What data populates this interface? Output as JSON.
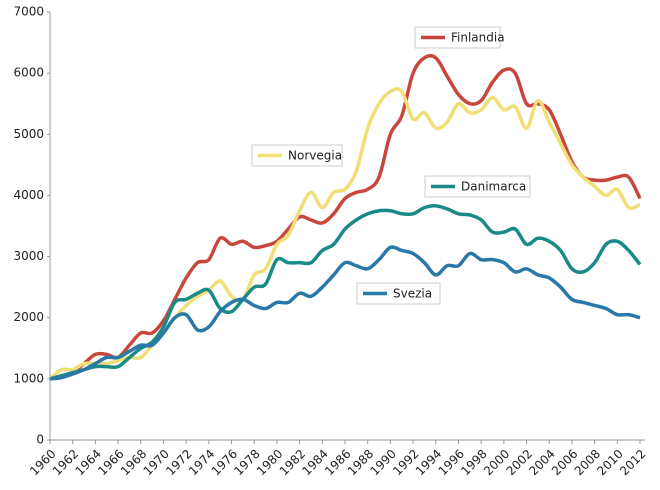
{
  "chart_data": {
    "type": "line",
    "x": [
      1960,
      1961,
      1962,
      1963,
      1964,
      1965,
      1966,
      1967,
      1968,
      1969,
      1970,
      1971,
      1972,
      1973,
      1974,
      1975,
      1976,
      1977,
      1978,
      1979,
      1980,
      1981,
      1982,
      1983,
      1984,
      1985,
      1986,
      1987,
      1988,
      1989,
      1990,
      1991,
      1992,
      1993,
      1994,
      1995,
      1996,
      1997,
      1998,
      1999,
      2000,
      2001,
      2002,
      2003,
      2004,
      2005,
      2006,
      2007,
      2008,
      2009,
      2010,
      2011,
      2012
    ],
    "series": [
      {
        "name": "Finlandia",
        "color": "#c8463c",
        "values": [
          1000,
          1050,
          1100,
          1250,
          1400,
          1400,
          1350,
          1550,
          1750,
          1750,
          1950,
          2300,
          2650,
          2900,
          2950,
          3300,
          3200,
          3250,
          3150,
          3180,
          3250,
          3450,
          3650,
          3600,
          3550,
          3700,
          3950,
          4050,
          4100,
          4300,
          5000,
          5300,
          6000,
          6250,
          6250,
          5950,
          5650,
          5500,
          5550,
          5850,
          6050,
          6000,
          5500,
          5500,
          5400,
          5000,
          4550,
          4300,
          4250,
          4250,
          4300,
          4300,
          3950
        ]
      },
      {
        "name": "Norvegia",
        "color": "#f0de76",
        "values": [
          1000,
          1150,
          1150,
          1250,
          1250,
          1250,
          1300,
          1350,
          1350,
          1550,
          1750,
          2000,
          2200,
          2350,
          2450,
          2600,
          2350,
          2300,
          2700,
          2800,
          3200,
          3350,
          3750,
          4050,
          3800,
          4050,
          4100,
          4400,
          5100,
          5500,
          5700,
          5700,
          5250,
          5350,
          5100,
          5200,
          5500,
          5350,
          5400,
          5600,
          5400,
          5450,
          5100,
          5550,
          5200,
          4850,
          4500,
          4300,
          4150,
          4000,
          4100,
          3800,
          3850
        ]
      },
      {
        "name": "Danimarca",
        "color": "#1a8a86",
        "values": [
          1000,
          1050,
          1100,
          1150,
          1200,
          1200,
          1200,
          1350,
          1500,
          1600,
          1850,
          2250,
          2300,
          2400,
          2450,
          2150,
          2100,
          2300,
          2500,
          2550,
          2950,
          2900,
          2900,
          2900,
          3100,
          3200,
          3450,
          3600,
          3700,
          3750,
          3750,
          3700,
          3700,
          3800,
          3830,
          3780,
          3700,
          3680,
          3600,
          3400,
          3400,
          3450,
          3200,
          3300,
          3250,
          3100,
          2800,
          2750,
          2900,
          3200,
          3250,
          3100,
          2870
        ]
      },
      {
        "name": "Svezia",
        "color": "#2878a8",
        "values": [
          1000,
          1020,
          1080,
          1150,
          1250,
          1350,
          1350,
          1450,
          1550,
          1550,
          1750,
          2000,
          2050,
          1800,
          1850,
          2100,
          2250,
          2300,
          2200,
          2150,
          2250,
          2250,
          2400,
          2350,
          2500,
          2700,
          2900,
          2850,
          2800,
          2950,
          3150,
          3100,
          3050,
          2900,
          2700,
          2850,
          2850,
          3050,
          2950,
          2950,
          2900,
          2750,
          2800,
          2700,
          2650,
          2500,
          2300,
          2250,
          2200,
          2150,
          2050,
          2050,
          2000
        ]
      }
    ],
    "xlim": [
      1960,
      2012
    ],
    "xticks": [
      1960,
      1962,
      1964,
      1966,
      1968,
      1970,
      1972,
      1974,
      1976,
      1978,
      1980,
      1982,
      1984,
      1986,
      1988,
      1990,
      1992,
      1994,
      1996,
      1998,
      2000,
      2002,
      2004,
      2006,
      2008,
      2010,
      2012
    ],
    "ylim": [
      0,
      7000
    ],
    "yticks": [
      0,
      1000,
      2000,
      3000,
      4000,
      5000,
      6000,
      7000
    ]
  }
}
